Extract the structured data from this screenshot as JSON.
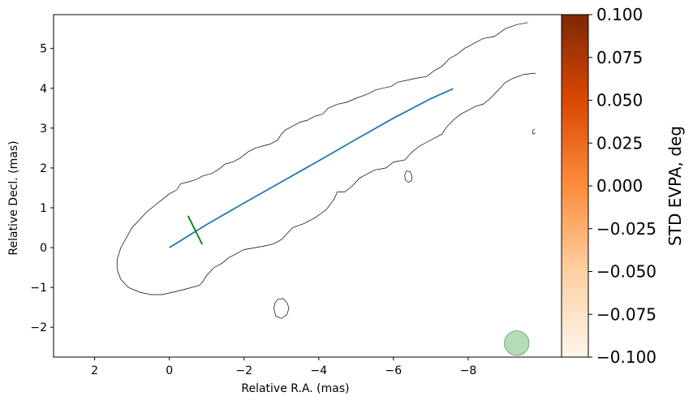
{
  "chart_data": {
    "type": "contour",
    "xlabel": "Relative R.A. (mas)",
    "ylabel": "Relative Decl. (mas)",
    "xlim": [
      3.1,
      -10.5
    ],
    "ylim": [
      -2.75,
      5.85
    ],
    "x_ticks": [
      2,
      0,
      -2,
      -4,
      -6,
      -8
    ],
    "x_tick_labels": [
      "2",
      "0",
      "−2",
      "−4",
      "−6",
      "−8"
    ],
    "y_ticks": [
      -2,
      -1,
      0,
      1,
      2,
      3,
      4,
      5
    ],
    "y_tick_labels": [
      "−2",
      "−1",
      "0",
      "1",
      "2",
      "3",
      "4",
      "5"
    ],
    "contours": [
      {
        "name": "jet-outline",
        "points": [
          [
            -9.6,
            5.65
          ],
          [
            -9.3,
            5.6
          ],
          [
            -9.0,
            5.5
          ],
          [
            -8.7,
            5.3
          ],
          [
            -8.4,
            5.25
          ],
          [
            -8.1,
            5.1
          ],
          [
            -7.9,
            5.0
          ],
          [
            -7.7,
            4.85
          ],
          [
            -7.5,
            4.75
          ],
          [
            -7.3,
            4.55
          ],
          [
            -7.1,
            4.45
          ],
          [
            -6.9,
            4.3
          ],
          [
            -6.6,
            4.25
          ],
          [
            -6.35,
            4.2
          ],
          [
            -6.1,
            4.15
          ],
          [
            -5.95,
            4.05
          ],
          [
            -5.7,
            4.0
          ],
          [
            -5.5,
            3.95
          ],
          [
            -5.3,
            3.85
          ],
          [
            -5.0,
            3.75
          ],
          [
            -4.75,
            3.65
          ],
          [
            -4.5,
            3.6
          ],
          [
            -4.25,
            3.5
          ],
          [
            -4.1,
            3.35
          ],
          [
            -3.9,
            3.3
          ],
          [
            -3.7,
            3.2
          ],
          [
            -3.5,
            3.15
          ],
          [
            -3.3,
            3.05
          ],
          [
            -3.1,
            2.95
          ],
          [
            -3.0,
            2.85
          ],
          [
            -2.9,
            2.7
          ],
          [
            -2.7,
            2.6
          ],
          [
            -2.5,
            2.55
          ],
          [
            -2.3,
            2.5
          ],
          [
            -2.1,
            2.4
          ],
          [
            -1.9,
            2.25
          ],
          [
            -1.7,
            2.15
          ],
          [
            -1.5,
            2.1
          ],
          [
            -1.3,
            1.95
          ],
          [
            -1.1,
            1.85
          ],
          [
            -0.9,
            1.8
          ],
          [
            -0.7,
            1.7
          ],
          [
            -0.5,
            1.65
          ],
          [
            -0.3,
            1.6
          ],
          [
            -0.2,
            1.45
          ],
          [
            0.0,
            1.35
          ],
          [
            0.2,
            1.2
          ],
          [
            0.4,
            1.05
          ],
          [
            0.6,
            0.9
          ],
          [
            0.8,
            0.7
          ],
          [
            1.0,
            0.5
          ],
          [
            1.15,
            0.25
          ],
          [
            1.3,
            0.0
          ],
          [
            1.4,
            -0.3
          ],
          [
            1.4,
            -0.55
          ],
          [
            1.3,
            -0.8
          ],
          [
            1.1,
            -1.0
          ],
          [
            0.8,
            -1.12
          ],
          [
            0.5,
            -1.18
          ],
          [
            0.2,
            -1.18
          ],
          [
            -0.1,
            -1.12
          ],
          [
            -0.4,
            -1.05
          ],
          [
            -0.6,
            -1.0
          ],
          [
            -0.8,
            -0.95
          ],
          [
            -0.9,
            -0.85
          ],
          [
            -1.0,
            -0.7
          ],
          [
            -1.2,
            -0.5
          ],
          [
            -1.4,
            -0.4
          ],
          [
            -1.6,
            -0.25
          ],
          [
            -1.8,
            -0.15
          ],
          [
            -2.0,
            -0.05
          ],
          [
            -2.3,
            0.0
          ],
          [
            -2.6,
            0.05
          ],
          [
            -2.8,
            0.1
          ],
          [
            -3.0,
            0.2
          ],
          [
            -3.1,
            0.3
          ],
          [
            -3.3,
            0.5
          ],
          [
            -3.6,
            0.6
          ],
          [
            -3.9,
            0.75
          ],
          [
            -4.2,
            0.95
          ],
          [
            -4.4,
            1.2
          ],
          [
            -4.5,
            1.4
          ],
          [
            -4.7,
            1.4
          ],
          [
            -4.9,
            1.55
          ],
          [
            -5.1,
            1.75
          ],
          [
            -5.3,
            1.85
          ],
          [
            -5.5,
            1.95
          ],
          [
            -5.8,
            2.0
          ],
          [
            -6.0,
            2.15
          ],
          [
            -6.3,
            2.2
          ],
          [
            -6.5,
            2.4
          ],
          [
            -6.7,
            2.55
          ],
          [
            -6.9,
            2.65
          ],
          [
            -7.1,
            2.75
          ],
          [
            -7.3,
            2.85
          ],
          [
            -7.4,
            3.0
          ],
          [
            -7.6,
            3.2
          ],
          [
            -7.8,
            3.35
          ],
          [
            -8.0,
            3.45
          ],
          [
            -8.2,
            3.55
          ],
          [
            -8.4,
            3.6
          ],
          [
            -8.6,
            3.75
          ],
          [
            -8.8,
            3.95
          ],
          [
            -9.0,
            4.15
          ],
          [
            -9.2,
            4.25
          ],
          [
            -9.5,
            4.35
          ],
          [
            -9.8,
            4.38
          ]
        ]
      },
      {
        "name": "blob-left",
        "points": [
          [
            -2.9,
            -1.3
          ],
          [
            -3.05,
            -1.28
          ],
          [
            -3.15,
            -1.38
          ],
          [
            -3.2,
            -1.52
          ],
          [
            -3.15,
            -1.68
          ],
          [
            -3.0,
            -1.78
          ],
          [
            -2.85,
            -1.72
          ],
          [
            -2.8,
            -1.55
          ],
          [
            -2.82,
            -1.4
          ],
          [
            -2.9,
            -1.3
          ]
        ]
      },
      {
        "name": "blob-right",
        "points": [
          [
            -6.35,
            1.93
          ],
          [
            -6.45,
            1.9
          ],
          [
            -6.5,
            1.78
          ],
          [
            -6.48,
            1.68
          ],
          [
            -6.4,
            1.64
          ],
          [
            -6.32,
            1.7
          ],
          [
            -6.3,
            1.82
          ],
          [
            -6.35,
            1.93
          ]
        ]
      },
      {
        "name": "blob-edge",
        "points": [
          [
            -9.78,
            2.98
          ],
          [
            -9.72,
            2.93
          ],
          [
            -9.74,
            2.85
          ],
          [
            -9.8,
            2.88
          ]
        ]
      }
    ],
    "series": [
      {
        "color": "#1f77b4",
        "x": [
          0.0,
          -1.0,
          -2.0,
          -3.0,
          -4.0,
          -5.0,
          -6.0,
          -7.0,
          -7.6
        ],
        "y": [
          0.0,
          0.58,
          1.12,
          1.65,
          2.18,
          2.72,
          3.25,
          3.74,
          3.99
        ]
      },
      {
        "color": "#008000",
        "x": [
          -0.5,
          -0.88
        ],
        "y": [
          0.8,
          0.08
        ]
      }
    ],
    "beam": {
      "x": -9.3,
      "y": -2.4,
      "radius_x_units": 0.33,
      "fill": "#8fc98f",
      "opacity": 0.65
    },
    "colorbar": {
      "label": "STD EVPA, deg",
      "cmap": "Oranges",
      "range": [
        -0.1,
        0.1
      ],
      "ticks": [
        0.1,
        0.075,
        0.05,
        0.025,
        0.0,
        -0.025,
        -0.05,
        -0.075,
        -0.1
      ],
      "tick_labels": [
        "0.100",
        "0.075",
        "0.050",
        "0.025",
        "0.000",
        "−0.025",
        "−0.050",
        "−0.075",
        "−0.100"
      ],
      "stops": [
        "#7f2704",
        "#d94801",
        "#fd8d3c",
        "#fdd0a2",
        "#fff5eb"
      ]
    }
  }
}
